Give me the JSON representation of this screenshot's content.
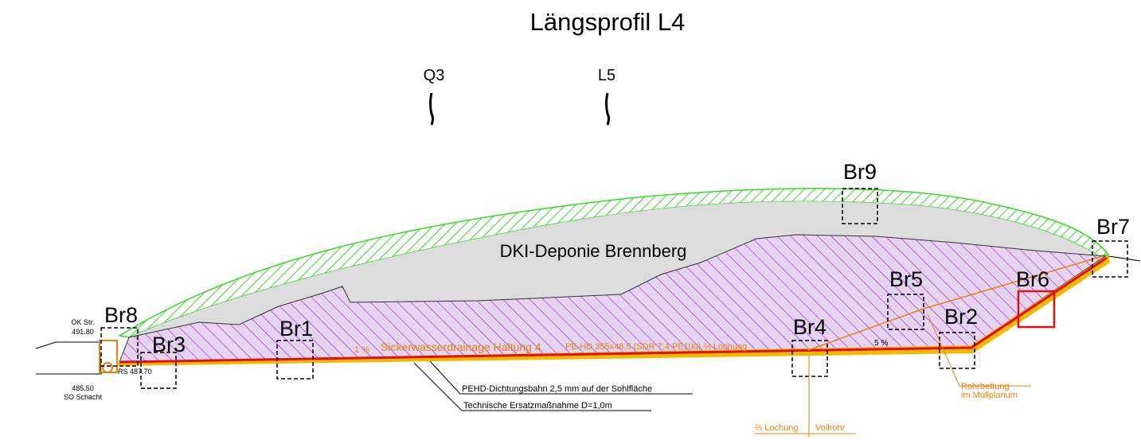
{
  "title": "Längsprofil L4",
  "sections": [
    "Q3",
    "L5"
  ],
  "fill_label": "DKI-Deponie Brennberg",
  "boxes": [
    "Br1",
    "Br2",
    "Br3",
    "Br4",
    "Br5",
    "Br6",
    "Br7",
    "Br8",
    "Br9"
  ],
  "street": {
    "label": "OK Str.",
    "level": "491.80"
  },
  "shaft": {
    "rs": "RS 487.70",
    "level": "485.50",
    "label": "SO Schacht"
  },
  "drainage": {
    "slope": "1 %",
    "name": "Sickerwasserdrainage Haltung 4",
    "pipe": "PE-HD 355x48,5 (SDR 7,4 PE100) ⅔ Lochung"
  },
  "slope2": "5 %",
  "liner": "PEHD-Dichtungsbahn 2,5 mm auf der Sohlfläche",
  "substitute": "Technische Ersatzmaßnahme D=1,0m",
  "pipe_change": [
    "⅔ Lochung",
    "Vollrohr"
  ],
  "bedding": [
    "Rohrbettung",
    "im Müllplanum"
  ]
}
